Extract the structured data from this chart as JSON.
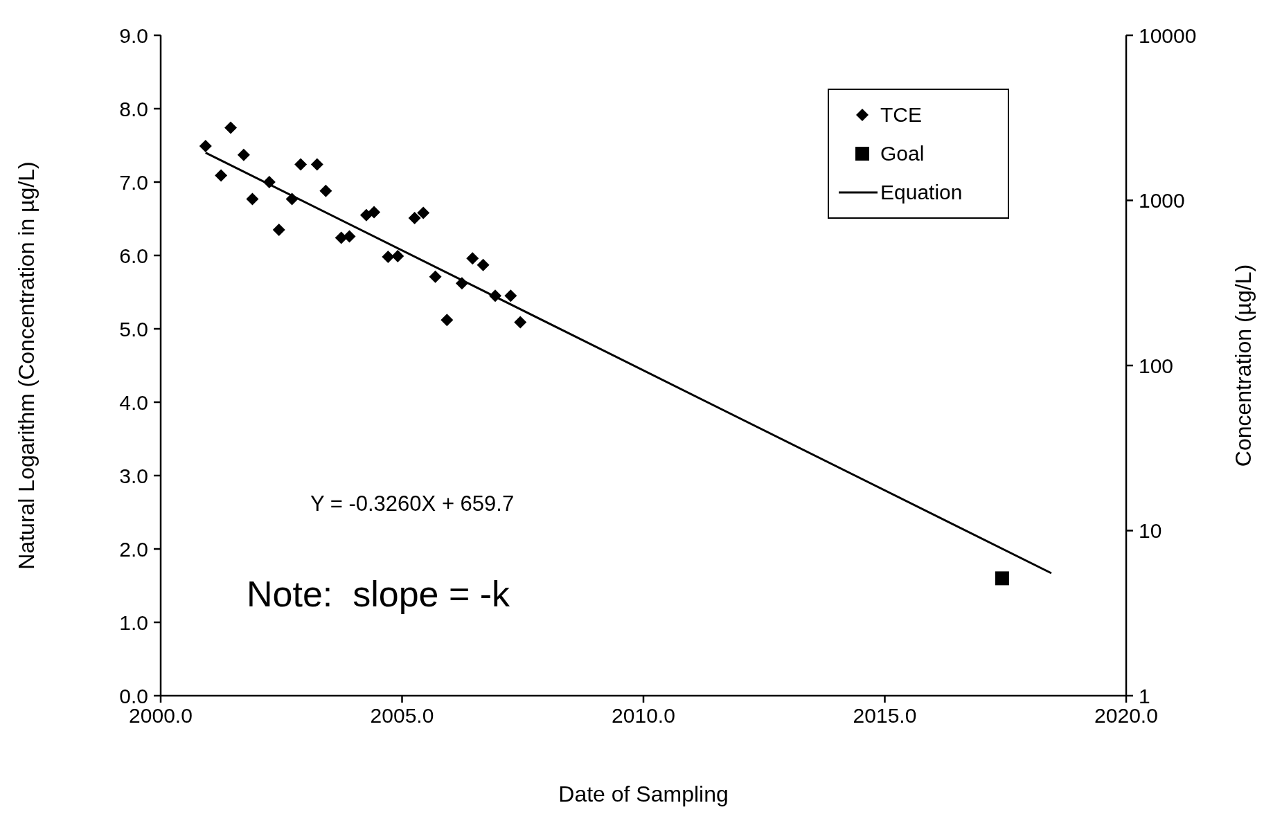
{
  "chart_data": {
    "type": "scatter",
    "xlabel": "Date  of Sampling",
    "ylabel": "Natural Logarithm (Concentration in µg/L)",
    "y2label": "Concentration (µg/L)",
    "xlim": [
      2000,
      2020
    ],
    "xticks": [
      {
        "value": 2000,
        "label": "2000.0"
      },
      {
        "value": 2005,
        "label": "2005.0"
      },
      {
        "value": 2010,
        "label": "2010.0"
      },
      {
        "value": 2015,
        "label": "2015.0"
      },
      {
        "value": 2020,
        "label": "2020.0"
      }
    ],
    "ylim": [
      0,
      9
    ],
    "yticks": [
      {
        "value": 0,
        "label": "0.0"
      },
      {
        "value": 1,
        "label": "1.0"
      },
      {
        "value": 2,
        "label": "2.0"
      },
      {
        "value": 3,
        "label": "3.0"
      },
      {
        "value": 4,
        "label": "4.0"
      },
      {
        "value": 5,
        "label": "5.0"
      },
      {
        "value": 6,
        "label": "6.0"
      },
      {
        "value": 7,
        "label": "7.0"
      },
      {
        "value": 8,
        "label": "8.0"
      },
      {
        "value": 9,
        "label": "9.0"
      }
    ],
    "y2lim": [
      1,
      10000
    ],
    "y2ticks": [
      1,
      10,
      100,
      1000,
      10000
    ],
    "log": "y2",
    "grid": false,
    "legend": "top right",
    "series": [
      {
        "name": "TCE",
        "type": "scatter",
        "marker": "diamond",
        "color": "#000000",
        "x": [
          2000.93,
          2001.25,
          2001.45,
          2001.72,
          2001.9,
          2002.25,
          2002.45,
          2002.72,
          2002.9,
          2003.24,
          2003.42,
          2003.74,
          2003.91,
          2004.26,
          2004.42,
          2004.71,
          2004.91,
          2005.26,
          2005.44,
          2005.69,
          2005.93,
          2006.24,
          2006.46,
          2006.68,
          2006.93,
          2007.25,
          2007.45
        ],
        "values": [
          7.49,
          7.09,
          7.74,
          7.37,
          6.77,
          7.0,
          6.35,
          6.77,
          7.24,
          7.24,
          6.88,
          6.24,
          6.26,
          6.55,
          6.59,
          5.98,
          5.99,
          6.51,
          6.58,
          5.71,
          5.12,
          5.62,
          5.96,
          5.87,
          5.45,
          5.45,
          5.09
        ]
      },
      {
        "name": "Goal",
        "type": "scatter",
        "marker": "square",
        "color": "#000000",
        "x": [
          2017.43
        ],
        "values": [
          1.6
        ]
      },
      {
        "name": "Equation",
        "type": "line",
        "marker": "none",
        "line_style": "solid",
        "color": "#000000",
        "x": [
          2000.93,
          2018.45
        ],
        "values": [
          7.4,
          1.67
        ]
      }
    ],
    "annotations": [
      "Y = -0.3260X + 659.7",
      "Note:  slope = -k"
    ]
  }
}
